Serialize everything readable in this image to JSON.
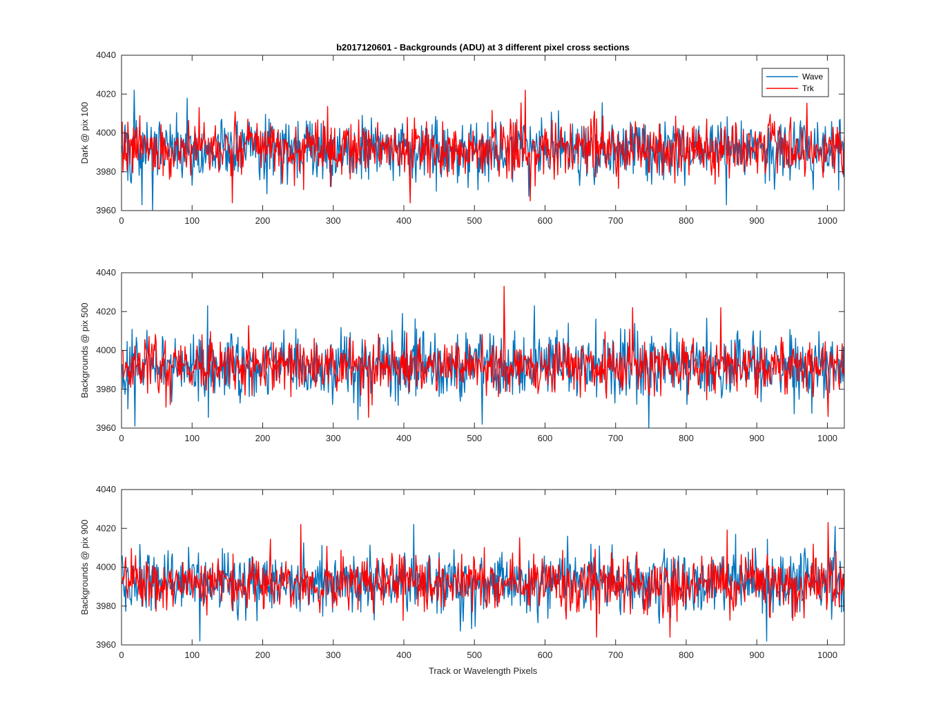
{
  "chart_data": [
    {
      "type": "line",
      "title": "b2017120601 - Backgrounds (ADU) at 3 different pixel cross sections",
      "xlabel": "",
      "ylabel": "Dark @ pix 100",
      "xlim": [
        0,
        1024
      ],
      "ylim": [
        3960,
        4040
      ],
      "xticks": [
        0,
        100,
        200,
        300,
        400,
        500,
        600,
        700,
        800,
        900,
        1000
      ],
      "yticks": [
        3960,
        3980,
        4000,
        4020,
        4040
      ],
      "legend": {
        "position": "top-right",
        "entries": [
          "Wave",
          "Trk"
        ]
      },
      "series": [
        {
          "name": "Wave",
          "color": "#0072BD",
          "n_points": 1024,
          "mean": 3992,
          "std": 8,
          "seed": 101,
          "annotations": [
            {
              "x": 17,
              "y": 4022
            },
            {
              "x": 43,
              "y": 3960
            },
            {
              "x": 28,
              "y": 3963
            },
            {
              "x": 445,
              "y": 3970
            },
            {
              "x": 856,
              "y": 3963
            }
          ]
        },
        {
          "name": "Trk",
          "color": "#FF0000",
          "n_points": 1024,
          "mean": 3992,
          "std": 7,
          "seed": 202,
          "annotations": [
            {
              "x": 571,
              "y": 4022
            },
            {
              "x": 578,
              "y": 3965
            },
            {
              "x": 408,
              "y": 3964
            },
            {
              "x": 156,
              "y": 3964
            }
          ]
        }
      ]
    },
    {
      "type": "line",
      "title": "",
      "xlabel": "",
      "ylabel": "Backgrounds @ pix 500",
      "xlim": [
        0,
        1024
      ],
      "ylim": [
        3960,
        4040
      ],
      "xticks": [
        0,
        100,
        200,
        300,
        400,
        500,
        600,
        700,
        800,
        900,
        1000
      ],
      "yticks": [
        3960,
        3980,
        4000,
        4020,
        4040
      ],
      "series": [
        {
          "name": "Wave",
          "color": "#0072BD",
          "n_points": 1024,
          "mean": 3992,
          "std": 8,
          "seed": 303,
          "annotations": [
            {
              "x": 121,
              "y": 4023
            },
            {
              "x": 18,
              "y": 3961
            },
            {
              "x": 746,
              "y": 3960
            },
            {
              "x": 510,
              "y": 3962
            },
            {
              "x": 584,
              "y": 4023
            }
          ]
        },
        {
          "name": "Trk",
          "color": "#FF0000",
          "n_points": 1024,
          "mean": 3992,
          "std": 7,
          "seed": 404,
          "annotations": [
            {
              "x": 541,
              "y": 4033
            },
            {
              "x": 723,
              "y": 4022
            },
            {
              "x": 848,
              "y": 4022
            },
            {
              "x": 1000,
              "y": 3966
            }
          ]
        }
      ]
    },
    {
      "type": "line",
      "title": "",
      "xlabel": "Track or Wavelength Pixels",
      "ylabel": "Backgrounds @ pix 900",
      "xlim": [
        0,
        1024
      ],
      "ylim": [
        3960,
        4040
      ],
      "xticks": [
        0,
        100,
        200,
        300,
        400,
        500,
        600,
        700,
        800,
        900,
        1000
      ],
      "yticks": [
        3960,
        3980,
        4000,
        4020,
        4040
      ],
      "series": [
        {
          "name": "Wave",
          "color": "#0072BD",
          "n_points": 1024,
          "mean": 3992,
          "std": 8,
          "seed": 505,
          "annotations": [
            {
              "x": 413,
              "y": 4022
            },
            {
              "x": 110,
              "y": 3962
            },
            {
              "x": 913,
              "y": 3962
            },
            {
              "x": 1010,
              "y": 4021
            }
          ]
        },
        {
          "name": "Trk",
          "color": "#FF0000",
          "n_points": 1024,
          "mean": 3992,
          "std": 7,
          "seed": 606,
          "annotations": [
            {
              "x": 253,
              "y": 4022
            },
            {
              "x": 1000,
              "y": 4023
            },
            {
              "x": 672,
              "y": 3964
            },
            {
              "x": 776,
              "y": 3964
            }
          ]
        }
      ]
    }
  ]
}
